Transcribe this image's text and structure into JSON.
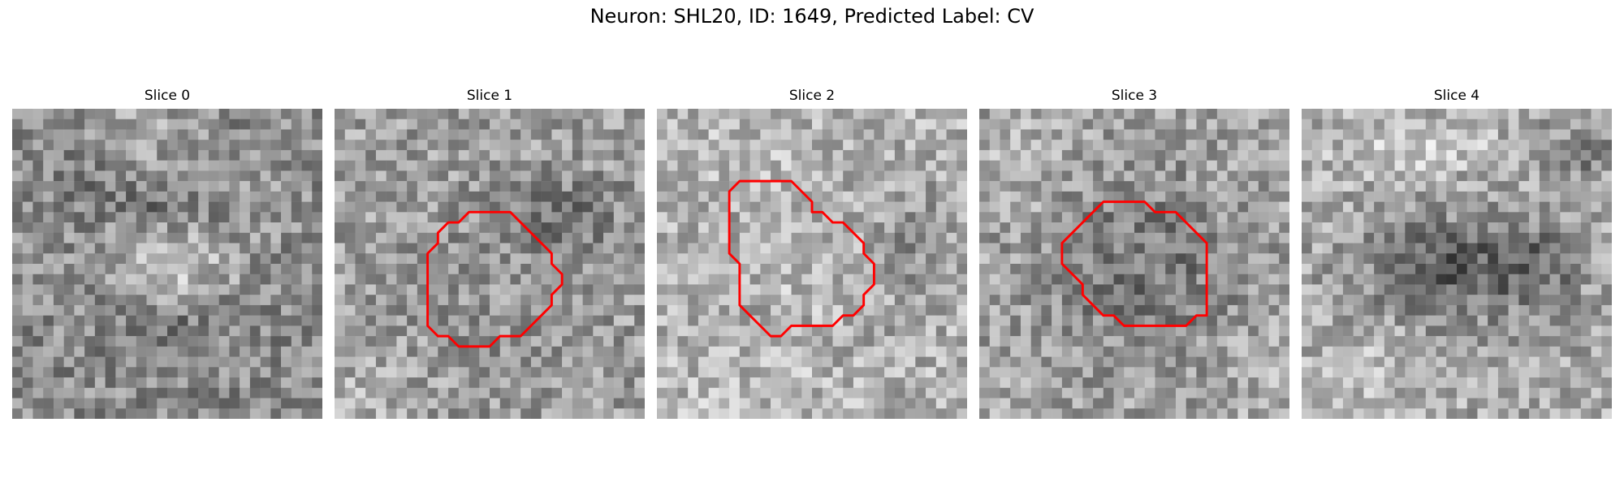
{
  "figure": {
    "title": "Neuron: SHL20, ID: 1649, Predicted Label: CV",
    "contour_color": "#ff0000"
  },
  "slices": [
    {
      "title": "Slice 0",
      "contour": []
    },
    {
      "title": "Slice 1",
      "contour": [
        [
          14,
          10
        ],
        [
          17,
          10
        ],
        [
          19,
          12
        ],
        [
          21,
          14
        ],
        [
          21,
          15
        ],
        [
          22,
          16
        ],
        [
          22,
          17
        ],
        [
          21,
          18
        ],
        [
          21,
          19
        ],
        [
          20,
          20
        ],
        [
          19,
          21
        ],
        [
          18,
          22
        ],
        [
          16,
          22
        ],
        [
          15,
          23
        ],
        [
          12,
          23
        ],
        [
          11,
          22
        ],
        [
          10,
          22
        ],
        [
          9,
          21
        ],
        [
          9,
          14
        ],
        [
          10,
          13
        ],
        [
          10,
          12
        ],
        [
          11,
          11
        ],
        [
          12,
          11
        ],
        [
          13,
          10
        ]
      ]
    },
    {
      "title": "Slice 2",
      "contour": [
        [
          8,
          7
        ],
        [
          13,
          7
        ],
        [
          14,
          8
        ],
        [
          15,
          9
        ],
        [
          15,
          10
        ],
        [
          16,
          10
        ],
        [
          17,
          11
        ],
        [
          18,
          11
        ],
        [
          19,
          12
        ],
        [
          20,
          13
        ],
        [
          20,
          14
        ],
        [
          21,
          15
        ],
        [
          21,
          16
        ],
        [
          21,
          17
        ],
        [
          20,
          18
        ],
        [
          20,
          19
        ],
        [
          19,
          20
        ],
        [
          18,
          20
        ],
        [
          17,
          21
        ],
        [
          13,
          21
        ],
        [
          12,
          22
        ],
        [
          11,
          22
        ],
        [
          10,
          21
        ],
        [
          9,
          20
        ],
        [
          8,
          19
        ],
        [
          8,
          15
        ],
        [
          7,
          14
        ],
        [
          7,
          8
        ]
      ]
    },
    {
      "title": "Slice 3",
      "contour": [
        [
          13,
          9
        ],
        [
          16,
          9
        ],
        [
          17,
          10
        ],
        [
          19,
          10
        ],
        [
          20,
          11
        ],
        [
          21,
          12
        ],
        [
          22,
          13
        ],
        [
          22,
          20
        ],
        [
          21,
          20
        ],
        [
          20,
          21
        ],
        [
          15,
          21
        ],
        [
          14,
          21
        ],
        [
          13,
          20
        ],
        [
          12,
          20
        ],
        [
          11,
          19
        ],
        [
          10,
          18
        ],
        [
          10,
          17
        ],
        [
          9,
          16
        ],
        [
          8,
          15
        ],
        [
          8,
          13
        ],
        [
          9,
          12
        ],
        [
          10,
          11
        ],
        [
          11,
          10
        ],
        [
          12,
          9
        ]
      ]
    },
    {
      "title": "Slice 4",
      "contour": []
    }
  ]
}
